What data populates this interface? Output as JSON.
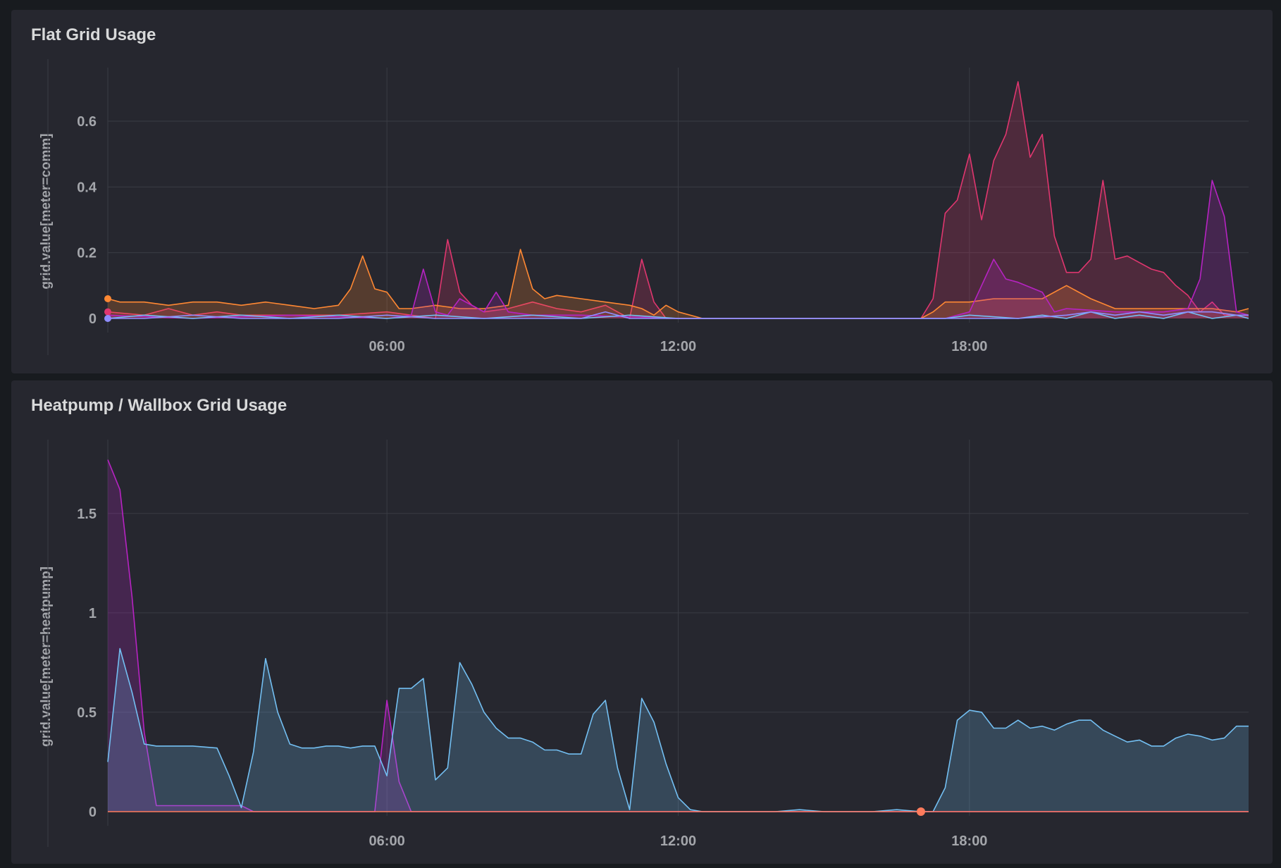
{
  "panels": [
    {
      "title": "Flat Grid Usage",
      "ylabel": "grid.value[meter=comm]"
    },
    {
      "title": "Heatpump / Wallbox Grid Usage",
      "ylabel": "grid.value[meter=heatpump]"
    }
  ],
  "chart_data": [
    {
      "type": "line",
      "title": "Flat Grid Usage",
      "ylabel": "grid.value[meter=comm]",
      "x_ticks": [
        "06:00",
        "12:00",
        "18:00"
      ],
      "x_tick_hours": [
        6,
        12,
        18
      ],
      "xlim_hours": [
        0.25,
        23.75
      ],
      "ylim": [
        0,
        0.75
      ],
      "y_ticks": [
        0,
        0.2,
        0.4,
        0.6
      ],
      "y_tick_labels": [
        "0",
        "0.2",
        "0.4",
        "0.6"
      ],
      "grid": true,
      "legend": "none",
      "series": [
        {
          "color": "#e0366f",
          "fill": true,
          "hours": [
            0.25,
            1.0,
            1.5,
            2.0,
            2.5,
            3.0,
            4.0,
            5.0,
            6.0,
            6.5,
            7.0,
            7.25,
            7.5,
            7.75,
            8.0,
            8.5,
            9.0,
            9.5,
            10.0,
            10.5,
            11.0,
            11.25,
            11.5,
            11.75,
            12.0,
            12.5,
            13,
            14,
            15,
            16,
            16.5,
            17.0,
            17.25,
            17.5,
            17.75,
            18.0,
            18.25,
            18.5,
            18.75,
            19.0,
            19.25,
            19.5,
            19.75,
            20.0,
            20.25,
            20.5,
            20.75,
            21.0,
            21.25,
            21.5,
            21.75,
            22.0,
            22.25,
            22.5,
            22.75,
            23.0,
            23.25,
            23.5,
            23.75
          ],
          "values": [
            0.02,
            0.01,
            0.03,
            0.01,
            0.02,
            0.01,
            0.01,
            0.01,
            0.02,
            0.01,
            0.0,
            0.24,
            0.08,
            0.04,
            0.02,
            0.03,
            0.05,
            0.03,
            0.02,
            0.04,
            0.0,
            0.18,
            0.05,
            0.0,
            0.0,
            0.0,
            0.0,
            0.0,
            0.0,
            0.0,
            0.0,
            0.0,
            0.06,
            0.32,
            0.36,
            0.5,
            0.3,
            0.48,
            0.56,
            0.72,
            0.49,
            0.56,
            0.25,
            0.14,
            0.14,
            0.18,
            0.42,
            0.18,
            0.19,
            0.17,
            0.15,
            0.14,
            0.1,
            0.07,
            0.02,
            0.05,
            0.01,
            0.01,
            0.01
          ]
        },
        {
          "color": "#ff8833",
          "fill": true,
          "hours": [
            0.25,
            0.5,
            1.0,
            1.5,
            2.0,
            2.5,
            3.0,
            3.5,
            4.0,
            4.5,
            5.0,
            5.25,
            5.5,
            5.75,
            6.0,
            6.25,
            6.5,
            7.0,
            7.5,
            8.0,
            8.5,
            8.75,
            9.0,
            9.25,
            9.5,
            10.0,
            10.5,
            11.0,
            11.25,
            11.5,
            11.75,
            12.0,
            12.5,
            13.0,
            14,
            15,
            16,
            17.0,
            17.25,
            17.5,
            18.0,
            18.5,
            19.0,
            19.5,
            20.0,
            20.5,
            21.0,
            21.5,
            22.0,
            22.5,
            23.0,
            23.5,
            23.75
          ],
          "values": [
            0.06,
            0.05,
            0.05,
            0.04,
            0.05,
            0.05,
            0.04,
            0.05,
            0.04,
            0.03,
            0.04,
            0.09,
            0.19,
            0.09,
            0.08,
            0.03,
            0.03,
            0.04,
            0.03,
            0.03,
            0.04,
            0.21,
            0.09,
            0.06,
            0.07,
            0.06,
            0.05,
            0.04,
            0.03,
            0.01,
            0.04,
            0.02,
            0.0,
            0.0,
            0.0,
            0.0,
            0.0,
            0.0,
            0.02,
            0.05,
            0.05,
            0.06,
            0.06,
            0.06,
            0.1,
            0.06,
            0.03,
            0.03,
            0.03,
            0.03,
            0.03,
            0.02,
            0.03
          ]
        },
        {
          "color": "#b623c2",
          "fill": true,
          "hours": [
            0.25,
            2.0,
            4.0,
            6.0,
            6.5,
            6.75,
            7.0,
            7.25,
            7.5,
            8.0,
            8.25,
            8.5,
            9.0,
            10.0,
            12,
            14,
            16,
            17.5,
            18.0,
            18.25,
            18.5,
            18.75,
            19.0,
            19.5,
            19.75,
            20.0,
            21.0,
            22.0,
            22.5,
            22.75,
            23.0,
            23.25,
            23.5,
            23.75
          ],
          "values": [
            0.01,
            0.0,
            0.01,
            0.0,
            0.01,
            0.15,
            0.02,
            0.01,
            0.06,
            0.02,
            0.08,
            0.02,
            0.01,
            0.01,
            0.0,
            0.0,
            0.0,
            0.0,
            0.02,
            0.1,
            0.18,
            0.12,
            0.11,
            0.08,
            0.02,
            0.03,
            0.02,
            0.02,
            0.03,
            0.12,
            0.42,
            0.31,
            0.02,
            0.01
          ]
        },
        {
          "color": "#73bff2",
          "fill": false,
          "hours": [
            0.25,
            1,
            2,
            3,
            4,
            5,
            6,
            7,
            8,
            9,
            10,
            11,
            12,
            14,
            16,
            17.5,
            18,
            19,
            19.5,
            20,
            20.5,
            21,
            21.5,
            22,
            22.5,
            23,
            23.5,
            23.75
          ],
          "values": [
            0.0,
            0.01,
            0.0,
            0.01,
            0.0,
            0.01,
            0.0,
            0.01,
            0.0,
            0.01,
            0.0,
            0.01,
            0.0,
            0.0,
            0.0,
            0.0,
            0.01,
            0.0,
            0.01,
            0.0,
            0.02,
            0.0,
            0.01,
            0.0,
            0.02,
            0.0,
            0.01,
            0.0
          ]
        },
        {
          "color": "#8f8dff",
          "fill": false,
          "hours": [
            0.25,
            1,
            2,
            3,
            4,
            5,
            6,
            7,
            8,
            9,
            10,
            10.5,
            11,
            12,
            14,
            16,
            17.5,
            18,
            19,
            20,
            20.5,
            21,
            21.5,
            22,
            22.5,
            23,
            23.5,
            23.75
          ],
          "values": [
            0.0,
            0.0,
            0.01,
            0.0,
            0.0,
            0.0,
            0.01,
            0.0,
            0.0,
            0.0,
            0.0,
            0.02,
            0.0,
            0.0,
            0.0,
            0.0,
            0.0,
            0.0,
            0.0,
            0.01,
            0.02,
            0.01,
            0.02,
            0.01,
            0.02,
            0.02,
            0.01,
            0.01
          ]
        }
      ]
    },
    {
      "type": "line",
      "title": "Heatpump / Wallbox Grid Usage",
      "ylabel": "grid.value[meter=heatpump]",
      "x_ticks": [
        "06:00",
        "12:00",
        "18:00"
      ],
      "x_tick_hours": [
        6,
        12,
        18
      ],
      "xlim_hours": [
        0.25,
        23.75
      ],
      "ylim": [
        0,
        1.85
      ],
      "y_ticks": [
        0,
        0.5,
        1,
        1.5
      ],
      "y_tick_labels": [
        "0",
        "0.5",
        "1",
        "1.5"
      ],
      "grid": true,
      "legend": "none",
      "series": [
        {
          "color": "#b623c2",
          "fill": true,
          "hours": [
            0.25,
            0.5,
            0.75,
            1.0,
            1.25,
            2.0,
            2.75,
            3.0,
            3.25,
            5.5,
            5.75,
            6.0,
            6.25,
            6.5,
            6.75,
            7,
            12,
            24
          ],
          "values": [
            1.77,
            1.62,
            1.08,
            0.4,
            0.03,
            0.03,
            0.03,
            0.03,
            0.0,
            0.0,
            0.0,
            0.56,
            0.15,
            0.0,
            0.0,
            0.0,
            0.0,
            0.0
          ]
        },
        {
          "color": "#73bff2",
          "fill": true,
          "hours": [
            0.25,
            0.5,
            0.75,
            1.0,
            1.25,
            1.5,
            2.0,
            2.5,
            2.75,
            3.0,
            3.25,
            3.5,
            3.75,
            4.0,
            4.25,
            4.5,
            4.75,
            5.0,
            5.25,
            5.5,
            5.75,
            6.0,
            6.25,
            6.5,
            6.75,
            7.0,
            7.25,
            7.5,
            7.75,
            8.0,
            8.25,
            8.5,
            8.75,
            9.0,
            9.25,
            9.5,
            9.75,
            10.0,
            10.25,
            10.5,
            10.75,
            11.0,
            11.25,
            11.5,
            11.75,
            12.0,
            12.25,
            12.5,
            12.75,
            13.0,
            13.5,
            14.0,
            14.5,
            15.0,
            15.5,
            16.0,
            16.5,
            17.0,
            17.25,
            17.5,
            17.75,
            18.0,
            18.25,
            18.5,
            18.75,
            19.0,
            19.25,
            19.5,
            19.75,
            20.0,
            20.25,
            20.5,
            20.75,
            21.0,
            21.25,
            21.5,
            21.75,
            22.0,
            22.25,
            22.5,
            22.75,
            23.0,
            23.25,
            23.5,
            23.75
          ],
          "values": [
            0.25,
            0.82,
            0.6,
            0.34,
            0.33,
            0.33,
            0.33,
            0.32,
            0.18,
            0.02,
            0.3,
            0.77,
            0.5,
            0.34,
            0.32,
            0.32,
            0.33,
            0.33,
            0.32,
            0.33,
            0.33,
            0.18,
            0.62,
            0.62,
            0.67,
            0.16,
            0.22,
            0.75,
            0.64,
            0.5,
            0.42,
            0.37,
            0.37,
            0.35,
            0.31,
            0.31,
            0.29,
            0.29,
            0.49,
            0.56,
            0.22,
            0.01,
            0.57,
            0.45,
            0.24,
            0.07,
            0.01,
            0.0,
            0.0,
            0.0,
            0.0,
            0.0,
            0.01,
            0.0,
            0.0,
            0.0,
            0.01,
            0.0,
            0.0,
            0.12,
            0.46,
            0.51,
            0.5,
            0.42,
            0.42,
            0.46,
            0.42,
            0.43,
            0.41,
            0.44,
            0.46,
            0.46,
            0.41,
            0.38,
            0.35,
            0.36,
            0.33,
            0.33,
            0.37,
            0.39,
            0.38,
            0.36,
            0.37,
            0.43,
            0.43
          ]
        },
        {
          "color": "#ff7b5c",
          "fill": false,
          "hours": [
            0.25,
            23.75
          ],
          "values": [
            0.0,
            0.0
          ]
        }
      ]
    }
  ]
}
